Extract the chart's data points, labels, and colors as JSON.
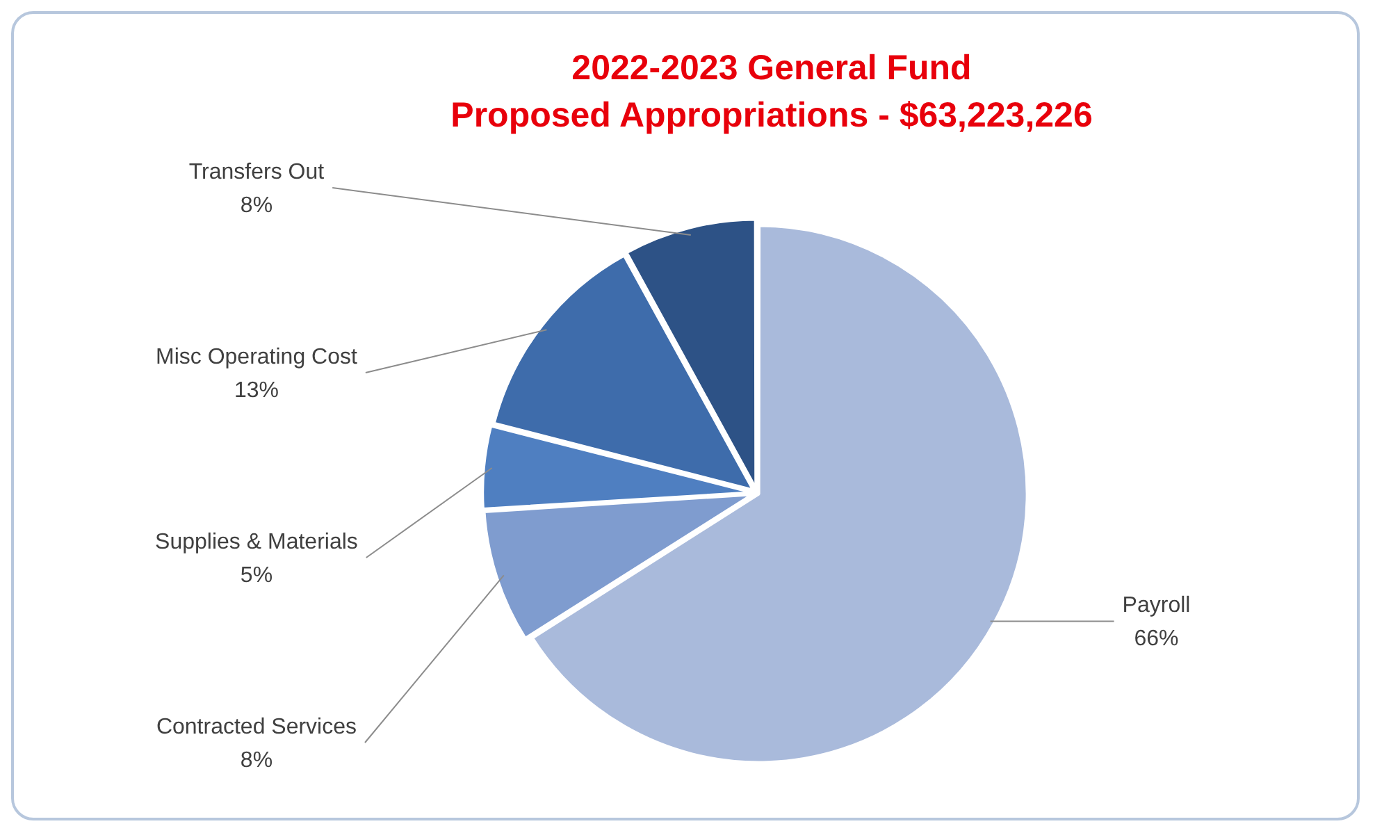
{
  "chart_data": {
    "type": "pie",
    "title": "2022-2023 General Fund\nProposed Appropriations - $63,223,226",
    "categories": [
      "Payroll",
      "Contracted Services",
      "Supplies & Materials",
      "Misc Operating Cost",
      "Transfers Out"
    ],
    "values": [
      66,
      8,
      5,
      13,
      8
    ],
    "value_labels": [
      "66%",
      "8%",
      "5%",
      "13%",
      "8%"
    ],
    "colors": [
      "#a9badb",
      "#7f9ccf",
      "#4f7fc1",
      "#3e6cab",
      "#2d5286"
    ],
    "legend": false
  }
}
